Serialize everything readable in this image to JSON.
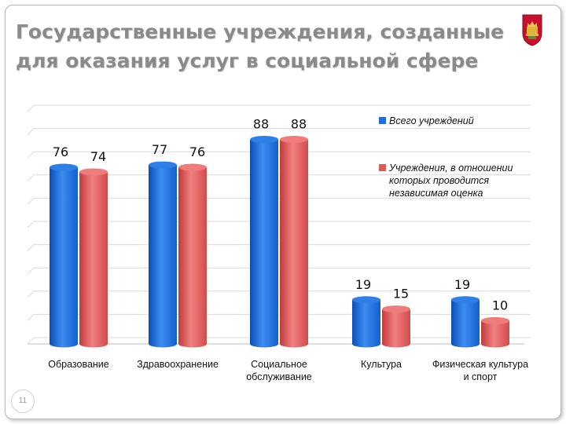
{
  "title": {
    "line1": "Государственные учреждения, созданные",
    "line2": "для оказания услуг в социальной сфере"
  },
  "slide_number": "11",
  "colors": {
    "series_all": "#1c6fe0",
    "series_assessed": "#e05a5a",
    "grid": "#d9d9d9",
    "title": "#8a8a8a"
  },
  "emblem": {
    "icon": "tver-coat-of-arms-icon"
  },
  "chart_data": {
    "type": "bar",
    "style": "3d-cylinder",
    "categories": [
      [
        "Образование"
      ],
      [
        "Здравоохранение"
      ],
      [
        "Социальное",
        "обслуживание"
      ],
      [
        "Культура"
      ],
      [
        "Физическая культура",
        "и спорт"
      ]
    ],
    "series": [
      {
        "name": "Всего учреждений",
        "values": [
          76,
          77,
          88,
          19,
          19
        ]
      },
      {
        "name": "Учреждения, в отношении которых проводится независимая оценка",
        "values": [
          74,
          76,
          88,
          15,
          10
        ]
      }
    ],
    "ylim": [
      0,
      100
    ],
    "grid": true,
    "legend_position": "right"
  }
}
